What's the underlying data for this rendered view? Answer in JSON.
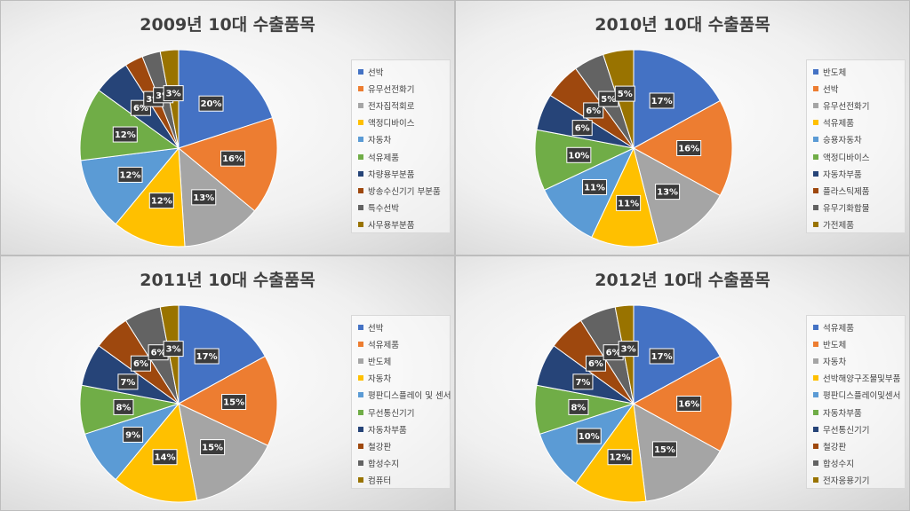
{
  "chart_data": [
    {
      "type": "pie",
      "title": "2009년 10대 수출품목",
      "categories": [
        "선박",
        "유무선전화기",
        "전자집적회로",
        "액정디바이스",
        "자동차",
        "석유제품",
        "차량용부분품",
        "방송수신기기 부분품",
        "특수선박",
        "사무용부분품"
      ],
      "values": [
        20,
        16,
        13,
        12,
        12,
        12,
        6,
        3,
        3,
        3
      ],
      "labels": [
        "20%",
        "16%",
        "13%",
        "12%",
        "12%",
        "12%",
        "6%",
        "3%",
        "3%",
        "3%"
      ],
      "colors": [
        "#4472c4",
        "#ed7d31",
        "#a5a5a5",
        "#ffc000",
        "#5b9bd5",
        "#70ad47",
        "#264478",
        "#9e480e",
        "#636363",
        "#997300"
      ],
      "legend": "right"
    },
    {
      "type": "pie",
      "title": "2010년 10대 수출품목",
      "categories": [
        "반도체",
        "선박",
        "유무선전화기",
        "석유제품",
        "승용자동차",
        "액정디바이스",
        "자동차부품",
        "플라스틱제품",
        "유무기화합물",
        "가전제품"
      ],
      "values": [
        17,
        16,
        13,
        11,
        11,
        10,
        6,
        6,
        5,
        5
      ],
      "labels": [
        "17%",
        "16%",
        "13%",
        "11%",
        "11%",
        "10%",
        "6%",
        "6%",
        "5%",
        "5%"
      ],
      "colors": [
        "#4472c4",
        "#ed7d31",
        "#a5a5a5",
        "#ffc000",
        "#5b9bd5",
        "#70ad47",
        "#264478",
        "#9e480e",
        "#636363",
        "#997300"
      ],
      "legend": "right"
    },
    {
      "type": "pie",
      "title": "2011년 10대 수출품목",
      "categories": [
        "선박",
        "석유제품",
        "반도체",
        "자동차",
        "평판디스플레이 및 센서",
        "무선통신기기",
        "자동차부품",
        "철강판",
        "합성수지",
        "컴퓨터"
      ],
      "values": [
        17,
        15,
        15,
        14,
        9,
        8,
        7,
        6,
        6,
        3
      ],
      "labels": [
        "17%",
        "15%",
        "15%",
        "14%",
        "9%",
        "8%",
        "7%",
        "6%",
        "6%",
        "3%"
      ],
      "colors": [
        "#4472c4",
        "#ed7d31",
        "#a5a5a5",
        "#ffc000",
        "#5b9bd5",
        "#70ad47",
        "#264478",
        "#9e480e",
        "#636363",
        "#997300"
      ],
      "legend": "right"
    },
    {
      "type": "pie",
      "title": "2012년 10대 수출품목",
      "categories": [
        "석유제품",
        "반도체",
        "자동차",
        "선박해양구조물및부품",
        "평판디스플레이및센서",
        "자동차부품",
        "무선통신기기",
        "철강판",
        "합성수지",
        "전자응용기기"
      ],
      "values": [
        17,
        16,
        15,
        12,
        10,
        8,
        7,
        6,
        6,
        3
      ],
      "labels": [
        "17%",
        "16%",
        "15%",
        "12%",
        "10%",
        "8%",
        "7%",
        "6%",
        "6%",
        "3%"
      ],
      "colors": [
        "#4472c4",
        "#ed7d31",
        "#a5a5a5",
        "#ffc000",
        "#5b9bd5",
        "#70ad47",
        "#264478",
        "#9e480e",
        "#636363",
        "#997300"
      ],
      "legend": "right"
    }
  ]
}
